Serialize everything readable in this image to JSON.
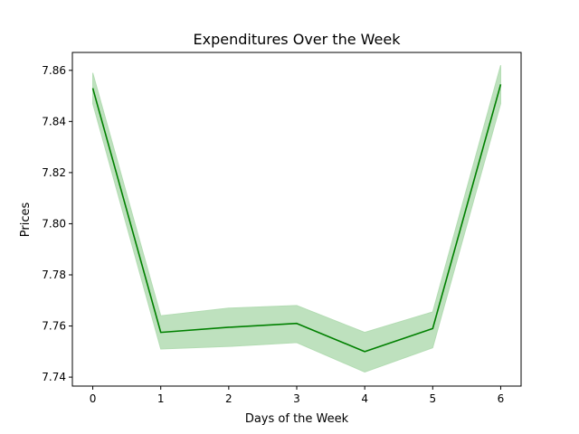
{
  "chart_data": {
    "type": "line",
    "title": "Expenditures Over the Week",
    "xlabel": "Days of the Week",
    "ylabel": "Prices",
    "x": [
      0,
      1,
      2,
      3,
      4,
      5,
      6
    ],
    "series": [
      {
        "values": [
          7.853,
          7.7575,
          7.7595,
          7.761,
          7.75,
          7.759,
          7.8545
        ],
        "band_lower": [
          7.847,
          7.751,
          7.752,
          7.7535,
          7.742,
          7.7515,
          7.847
        ],
        "band_upper": [
          7.859,
          7.764,
          7.767,
          7.768,
          7.7575,
          7.7655,
          7.862
        ],
        "color": "#008000",
        "band_color": "#b3dcb3"
      }
    ],
    "xlim": [
      -0.3,
      6.3
    ],
    "ylim": [
      7.7365,
      7.867
    ],
    "xticks": [
      0,
      1,
      2,
      3,
      4,
      5,
      6
    ],
    "xtick_labels": [
      "0",
      "1",
      "2",
      "3",
      "4",
      "5",
      "6"
    ],
    "yticks": [
      7.74,
      7.76,
      7.78,
      7.8,
      7.82,
      7.84,
      7.86
    ],
    "ytick_labels": [
      "7.74",
      "7.76",
      "7.78",
      "7.80",
      "7.82",
      "7.84",
      "7.86"
    ],
    "grid": false,
    "legend": "none"
  }
}
